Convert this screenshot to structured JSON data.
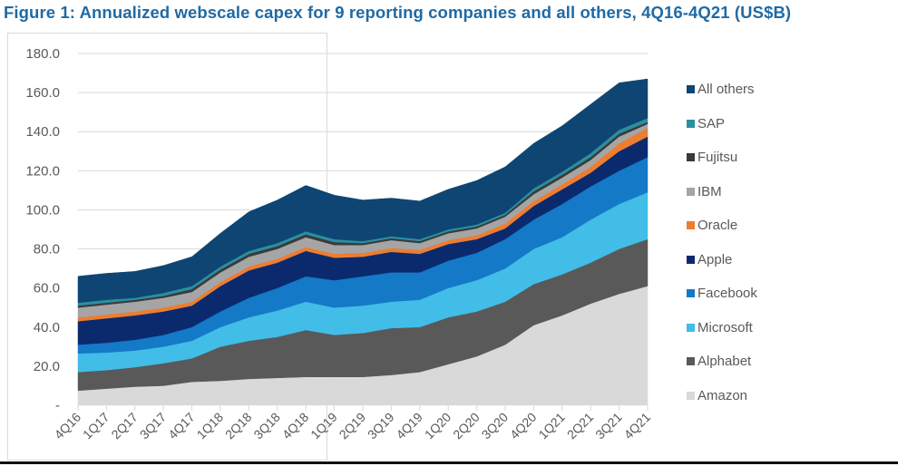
{
  "title": "Figure 1: Annualized webscale capex for 9 reporting companies and all others, 4Q16-4Q21 (US$B)",
  "chart_data": {
    "type": "area",
    "stacked": true,
    "title": "Figure 1: Annualized webscale capex for 9 reporting companies and all others, 4Q16-4Q21 (US$B)",
    "xlabel": "",
    "ylabel": "",
    "ylim": [
      0,
      180
    ],
    "yticks": [
      "-",
      "20.0",
      "40.0",
      "60.0",
      "80.0",
      "100.0",
      "120.0",
      "140.0",
      "160.0",
      "180.0"
    ],
    "ytick_values": [
      0,
      20,
      40,
      60,
      80,
      100,
      120,
      140,
      160,
      180
    ],
    "grid": true,
    "legend_position": "right",
    "categories": [
      "4Q16",
      "1Q17",
      "2Q17",
      "3Q17",
      "4Q17",
      "1Q18",
      "2Q18",
      "3Q18",
      "4Q18",
      "1Q19",
      "2Q19",
      "3Q19",
      "4Q19",
      "1Q20",
      "2Q20",
      "3Q20",
      "4Q20",
      "1Q21",
      "2Q21",
      "3Q21",
      "4Q21"
    ],
    "series": [
      {
        "name": "Amazon",
        "color": "#d9d9d9",
        "values": [
          7.5,
          8.5,
          9.5,
          10,
          12,
          12.5,
          13.5,
          14,
          14.5,
          14.5,
          14.5,
          15.5,
          17,
          21,
          25,
          31,
          41,
          46,
          52,
          57,
          61
        ]
      },
      {
        "name": "Alphabet",
        "color": "#595959",
        "values": [
          9.5,
          9.5,
          10,
          11.5,
          12,
          17.5,
          19.5,
          21,
          24,
          21.5,
          22.5,
          24,
          23,
          24,
          23,
          22,
          21,
          21,
          21,
          23,
          24
        ]
      },
      {
        "name": "Microsoft",
        "color": "#41bde8",
        "values": [
          9.5,
          9,
          8.5,
          8.5,
          9,
          10,
          12,
          13.5,
          14.5,
          14,
          14,
          13.5,
          14,
          15,
          16,
          17,
          18,
          19,
          22,
          23,
          24
        ]
      },
      {
        "name": "Facebook",
        "color": "#1479c7",
        "values": [
          4.5,
          5,
          5.5,
          6,
          7,
          8,
          10,
          11.5,
          13,
          14,
          15,
          15,
          14,
          14,
          14,
          15,
          15,
          17,
          17,
          17,
          18
        ]
      },
      {
        "name": "Apple",
        "color": "#0b2a6e",
        "values": [
          12,
          12.5,
          12.5,
          12,
          11,
          13,
          14,
          13,
          13,
          11.5,
          10,
          10.5,
          9.5,
          8.5,
          7,
          5.5,
          7,
          7.5,
          7,
          10,
          10.5
        ]
      },
      {
        "name": "Oracle",
        "color": "#ed7d31",
        "values": [
          2,
          2,
          2,
          2,
          2,
          2,
          2,
          2,
          2,
          2,
          2,
          2,
          2,
          2,
          2,
          2.5,
          2.5,
          2.5,
          3,
          4,
          4.5
        ]
      },
      {
        "name": "IBM",
        "color": "#a5a5a5",
        "values": [
          5,
          5,
          5,
          5,
          5,
          5,
          5,
          5,
          5,
          4.5,
          4,
          4,
          3.5,
          3.5,
          3.5,
          3.5,
          3.5,
          3.5,
          3.5,
          3.5,
          2
        ]
      },
      {
        "name": "Fujitsu",
        "color": "#3a3a3a",
        "values": [
          1,
          1,
          1,
          1,
          1.5,
          1.5,
          1.5,
          1.5,
          1.5,
          1.5,
          1,
          1,
          1,
          1,
          1,
          1,
          1.5,
          1.5,
          1.5,
          1.5,
          1
        ]
      },
      {
        "name": "SAP",
        "color": "#2a8fa0",
        "values": [
          1.5,
          1.5,
          1,
          1.5,
          1.5,
          1.5,
          1.5,
          1.5,
          1.5,
          1.5,
          1,
          1,
          1,
          1,
          1,
          1,
          1.5,
          1.5,
          2,
          2,
          2
        ]
      },
      {
        "name": "All others",
        "color": "#0e4572",
        "values": [
          13.5,
          13.5,
          13.5,
          14,
          15,
          17,
          20,
          22,
          23.5,
          22.5,
          21,
          19.5,
          19.5,
          20.5,
          22.5,
          23.5,
          23,
          23.5,
          25,
          24,
          20
        ]
      }
    ]
  }
}
